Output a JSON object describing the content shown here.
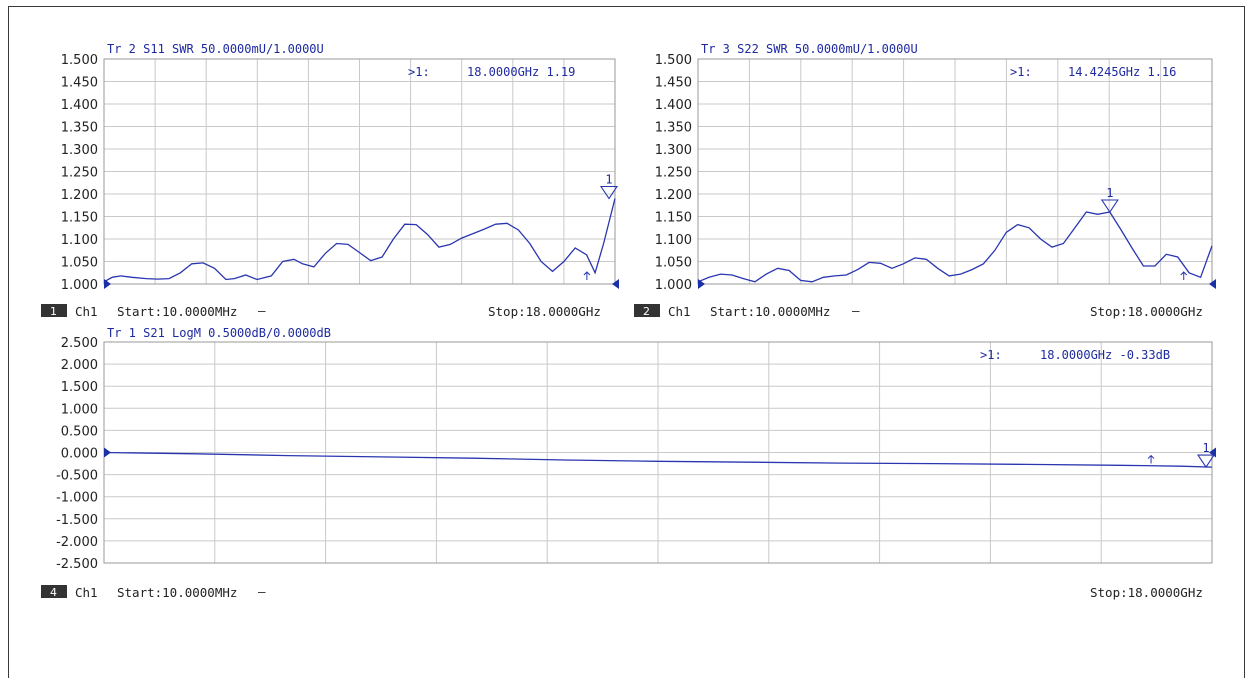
{
  "panels": [
    {
      "header": "Tr 2  S11 SWR 50.0000mU/1.0000U",
      "yticks": [
        "1.500",
        "1.450",
        "1.400",
        "1.350",
        "1.300",
        "1.250",
        "1.200",
        "1.150",
        "1.100",
        "1.050",
        "1.000"
      ],
      "marker_readout": {
        "prefix": ">1:",
        "value": "18.0000GHz 1.19"
      },
      "marker_label": "1",
      "footer": {
        "badge": "1",
        "channel": "Ch1",
        "start": "Start:10.0000MHz",
        "dash": "—",
        "stop": "Stop:18.0000GHz"
      }
    },
    {
      "header": "Tr 3  S22 SWR 50.0000mU/1.0000U",
      "yticks": [
        "1.500",
        "1.450",
        "1.400",
        "1.350",
        "1.300",
        "1.250",
        "1.200",
        "1.150",
        "1.100",
        "1.050",
        "1.000"
      ],
      "marker_readout": {
        "prefix": ">1:",
        "value": "14.4245GHz 1.16"
      },
      "marker_label": "1",
      "footer": {
        "badge": "2",
        "channel": "Ch1",
        "start": "Start:10.0000MHz",
        "dash": "—",
        "stop": "Stop:18.0000GHz"
      }
    },
    {
      "header": "Tr 1  S21 LogM 0.5000dB/0.0000dB",
      "yticks": [
        "2.500",
        "2.000",
        "1.500",
        "1.000",
        "0.500",
        "0.000",
        "-0.500",
        "-1.000",
        "-1.500",
        "-2.000",
        "-2.500"
      ],
      "marker_readout": {
        "prefix": ">1:",
        "value": "18.0000GHz -0.33dB"
      },
      "marker_label": "1",
      "footer": {
        "badge": "4",
        "channel": "Ch1",
        "start": "Start:10.0000MHz",
        "dash": "—",
        "stop": "Stop:18.0000GHz"
      }
    }
  ],
  "chart_data": [
    {
      "type": "line",
      "title": "Tr 2  S11 SWR 50.0000mU/1.0000U",
      "xlabel": "",
      "ylabel": "",
      "xlim": [
        0.01,
        18.0
      ],
      "ylim": [
        1.0,
        1.5
      ],
      "grid": true,
      "series": [
        {
          "name": "S11",
          "x": [
            0.01,
            0.3,
            0.6,
            1.0,
            1.5,
            1.9,
            2.3,
            2.7,
            3.1,
            3.5,
            3.9,
            4.3,
            4.6,
            5.0,
            5.4,
            5.9,
            6.3,
            6.7,
            7.0,
            7.4,
            7.8,
            8.2,
            8.6,
            9.0,
            9.4,
            9.8,
            10.2,
            10.6,
            11.0,
            11.4,
            11.8,
            12.2,
            12.6,
            13.0,
            13.4,
            13.8,
            14.2,
            14.6,
            15.0,
            15.4,
            15.8,
            16.2,
            16.6,
            17.0,
            17.3,
            17.6,
            18.0
          ],
          "y": [
            1.005,
            1.015,
            1.018,
            1.015,
            1.012,
            1.011,
            1.012,
            1.025,
            1.045,
            1.047,
            1.035,
            1.01,
            1.012,
            1.02,
            1.01,
            1.018,
            1.05,
            1.055,
            1.045,
            1.038,
            1.068,
            1.09,
            1.088,
            1.07,
            1.052,
            1.06,
            1.1,
            1.133,
            1.132,
            1.11,
            1.082,
            1.088,
            1.102,
            1.112,
            1.122,
            1.133,
            1.135,
            1.12,
            1.09,
            1.05,
            1.028,
            1.05,
            1.08,
            1.065,
            1.025,
            1.09,
            1.19
          ]
        }
      ],
      "markers": [
        {
          "label": "1",
          "x": 18.0,
          "y": 1.19
        }
      ]
    },
    {
      "type": "line",
      "title": "Tr 3  S22 SWR 50.0000mU/1.0000U",
      "xlabel": "",
      "ylabel": "",
      "xlim": [
        0.01,
        18.0
      ],
      "ylim": [
        1.0,
        1.5
      ],
      "grid": true,
      "series": [
        {
          "name": "S22",
          "x": [
            0.01,
            0.4,
            0.8,
            1.2,
            1.6,
            2.0,
            2.4,
            2.8,
            3.2,
            3.6,
            4.0,
            4.4,
            4.8,
            5.2,
            5.6,
            6.0,
            6.4,
            6.8,
            7.2,
            7.6,
            8.0,
            8.4,
            8.8,
            9.2,
            9.6,
            10.0,
            10.4,
            10.8,
            11.2,
            11.6,
            12.0,
            12.4,
            12.8,
            13.2,
            13.6,
            14.0,
            14.4245,
            14.8,
            15.2,
            15.6,
            16.0,
            16.4,
            16.8,
            17.2,
            17.6,
            18.0
          ],
          "y": [
            1.005,
            1.015,
            1.022,
            1.02,
            1.012,
            1.005,
            1.022,
            1.035,
            1.03,
            1.008,
            1.005,
            1.015,
            1.018,
            1.02,
            1.032,
            1.048,
            1.046,
            1.035,
            1.045,
            1.058,
            1.055,
            1.035,
            1.018,
            1.022,
            1.032,
            1.045,
            1.075,
            1.115,
            1.132,
            1.125,
            1.1,
            1.082,
            1.09,
            1.125,
            1.16,
            1.155,
            1.16,
            1.122,
            1.08,
            1.04,
            1.04,
            1.066,
            1.06,
            1.025,
            1.015,
            1.085
          ]
        }
      ],
      "markers": [
        {
          "label": "1",
          "x": 14.4245,
          "y": 1.16
        }
      ]
    },
    {
      "type": "line",
      "title": "Tr 1  S21 LogM 0.5000dB/0.0000dB",
      "xlabel": "",
      "ylabel": "",
      "xlim": [
        0.01,
        18.0
      ],
      "ylim": [
        -2.5,
        2.5
      ],
      "grid": true,
      "series": [
        {
          "name": "S21",
          "x": [
            0.01,
            1.5,
            3.0,
            4.5,
            6.0,
            7.5,
            9.0,
            10.5,
            12.0,
            13.5,
            15.0,
            16.5,
            17.5,
            18.0
          ],
          "y": [
            0.0,
            -0.03,
            -0.07,
            -0.1,
            -0.13,
            -0.17,
            -0.2,
            -0.22,
            -0.24,
            -0.25,
            -0.27,
            -0.29,
            -0.31,
            -0.33
          ]
        }
      ],
      "markers": [
        {
          "label": "1",
          "x": 18.0,
          "y": -0.33
        }
      ]
    }
  ],
  "colors": {
    "trace": "#2a36b0",
    "grid": "#c9c9c9",
    "badge": "#333333",
    "axis_marker": "#1a2fa8"
  }
}
